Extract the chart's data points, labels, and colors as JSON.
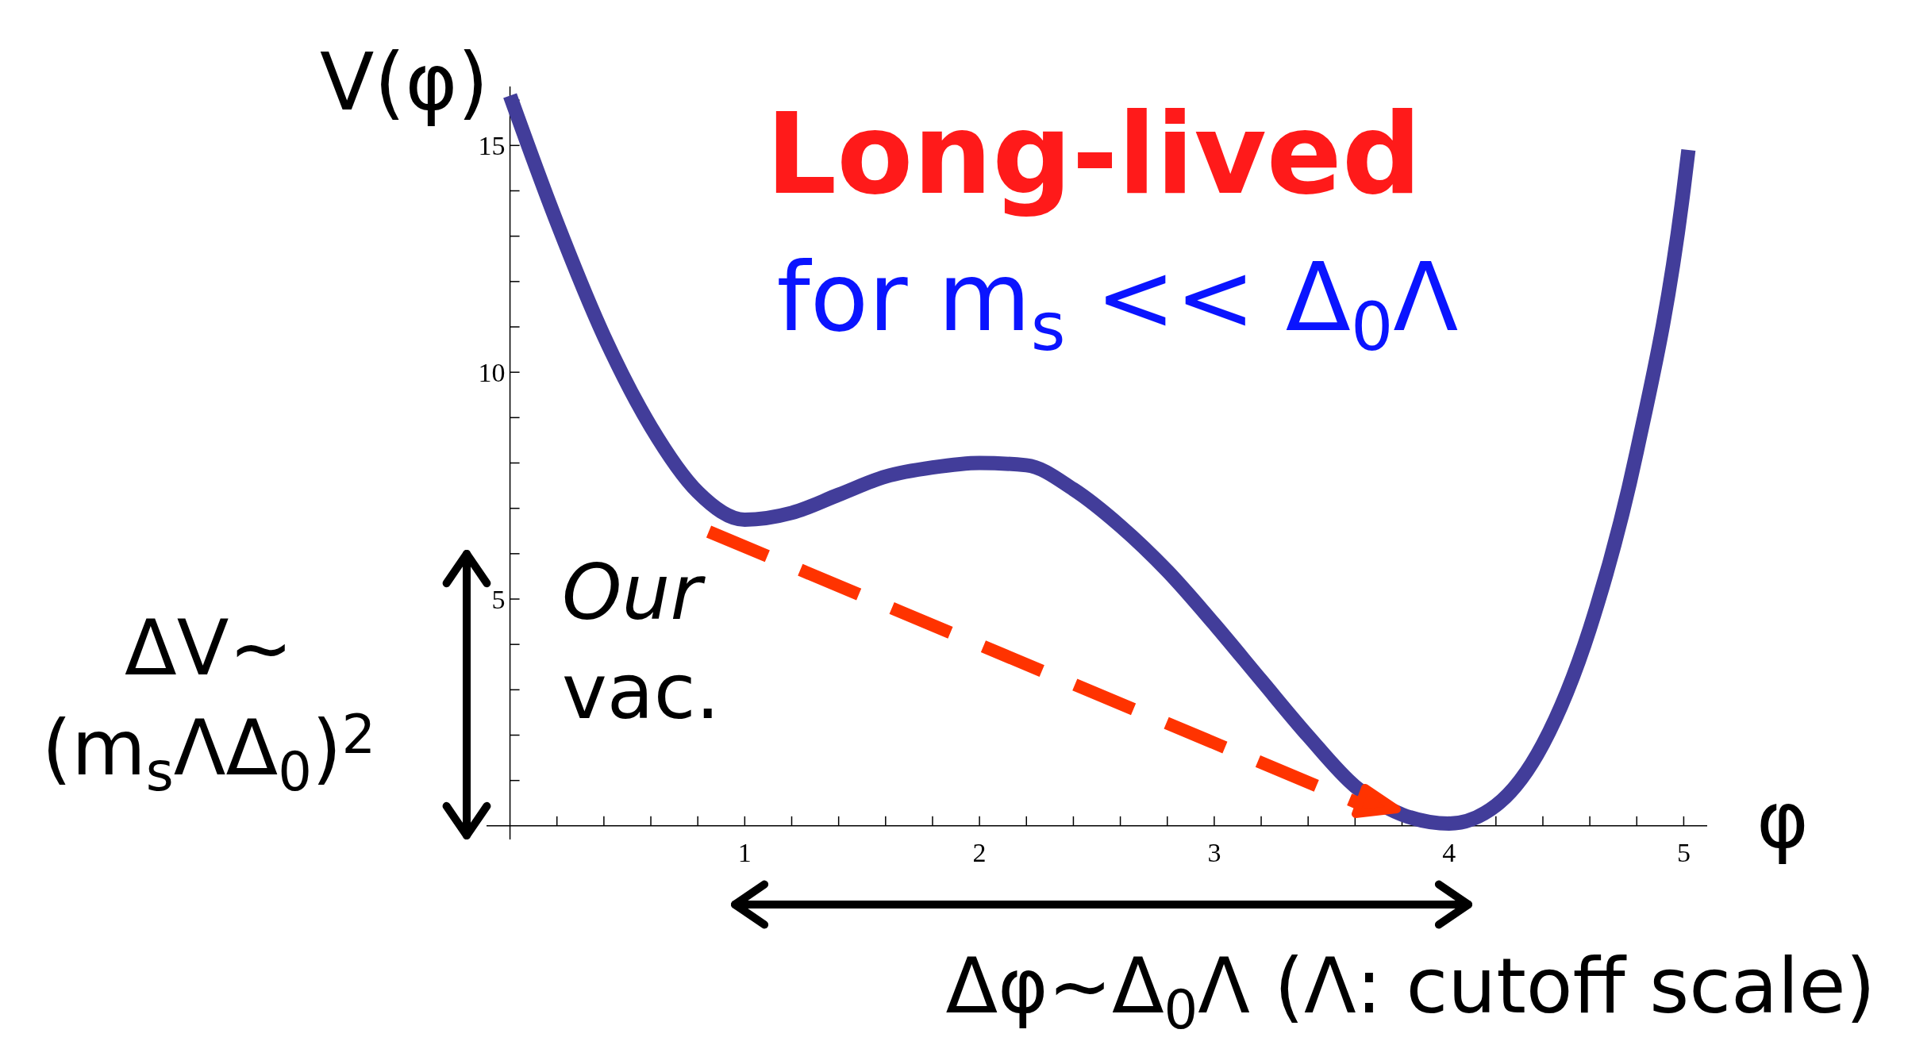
{
  "chart_data": {
    "type": "line",
    "title": "Long-lived",
    "subtitle": "for m$_{s}$ << Δ$_{0}$Λ",
    "xlabel": "φ",
    "ylabel": "V(φ)",
    "x": [
      0,
      0.2,
      0.4,
      0.6,
      0.8,
      1.0,
      1.2,
      1.4,
      1.6,
      1.8,
      2.0,
      2.2,
      2.4,
      2.6,
      2.8,
      3.0,
      3.2,
      3.4,
      3.6,
      3.8,
      4.0,
      4.2,
      4.4,
      4.6,
      4.8,
      5.0,
      5.02
    ],
    "series": [
      {
        "color": "#423d9a",
        "values": [
          16.1,
          13.3,
          10.8,
          8.8,
          7.36,
          6.75,
          6.9,
          7.3,
          7.7,
          7.9,
          8.0,
          7.95,
          7.42,
          6.61,
          5.62,
          4.45,
          3.21,
          1.98,
          0.87,
          0.25,
          0.05,
          0.45,
          1.8,
          4.35,
          8.25,
          14.05,
          14.9
        ]
      }
    ],
    "xlim": [
      -0.1,
      5.1
    ],
    "ylim": [
      -0.3,
      16.3
    ],
    "xticks": [
      {
        "value": 0.2,
        "label": null
      },
      {
        "value": 0.4,
        "label": null
      },
      {
        "value": 0.6,
        "label": null
      },
      {
        "value": 0.8,
        "label": null
      },
      1,
      {
        "value": 1.2,
        "label": null
      },
      {
        "value": 1.4,
        "label": null
      },
      {
        "value": 1.6,
        "label": null
      },
      {
        "value": 1.8,
        "label": null
      },
      2,
      {
        "value": 2.2,
        "label": null
      },
      {
        "value": 2.4,
        "label": null
      },
      {
        "value": 2.6,
        "label": null
      },
      {
        "value": 2.8,
        "label": null
      },
      3,
      {
        "value": 3.2,
        "label": null
      },
      {
        "value": 3.4,
        "label": null
      },
      {
        "value": 3.6,
        "label": null
      },
      {
        "value": 3.8,
        "label": null
      },
      4,
      {
        "value": 4.2,
        "label": null
      },
      {
        "value": 4.4,
        "label": null
      },
      {
        "value": 4.6,
        "label": null
      },
      {
        "value": 4.8,
        "label": null
      },
      5
    ],
    "yticks": [
      {
        "value": 1,
        "label": null
      },
      {
        "value": 2,
        "label": null
      },
      {
        "value": 3,
        "label": null
      },
      {
        "value": 4,
        "label": null
      },
      5,
      {
        "value": 6,
        "label": null
      },
      {
        "value": 7,
        "label": null
      },
      {
        "value": 8,
        "label": null
      },
      {
        "value": 9,
        "label": null
      },
      10,
      {
        "value": 11,
        "label": null
      },
      {
        "value": 12,
        "label": null
      },
      {
        "value": 13,
        "label": null
      },
      {
        "value": 14,
        "label": null
      },
      15,
      {
        "value": 16,
        "label": null
      }
    ],
    "grid": false,
    "marker": "none",
    "line_style": "solid",
    "annotations": [
      "Our vac.",
      "ΔV~",
      "(m$_{s}$ΛΔ$_{0}$)$^{2}$",
      "Δφ~Δ$_{0}$Λ (Λ: cutoff scale)"
    ]
  }
}
